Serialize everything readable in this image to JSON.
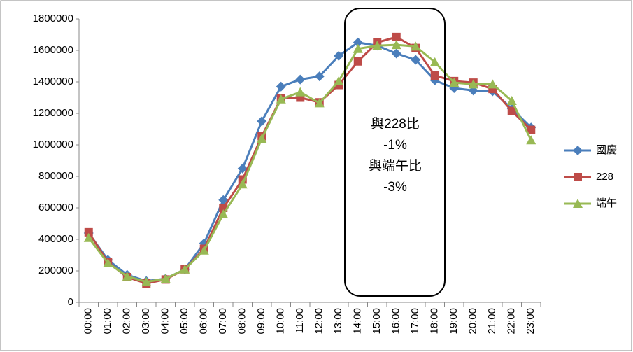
{
  "chart_data": {
    "type": "line",
    "categories": [
      "00:00",
      "01:00",
      "02:00",
      "03:00",
      "04:00",
      "05:00",
      "06:00",
      "07:00",
      "08:00",
      "09:00",
      "10:00",
      "11:00",
      "12:00",
      "13:00",
      "14:00",
      "15:00",
      "16:00",
      "17:00",
      "18:00",
      "19:00",
      "20:00",
      "21:00",
      "22:00",
      "23:00"
    ],
    "series": [
      {
        "name": "國慶",
        "color": "#4a7ebb",
        "marker": "diamond",
        "values": [
          440000,
          270000,
          175000,
          135000,
          150000,
          210000,
          375000,
          650000,
          850000,
          1150000,
          1370000,
          1415000,
          1435000,
          1565000,
          1650000,
          1630000,
          1580000,
          1540000,
          1410000,
          1360000,
          1345000,
          1340000,
          1230000,
          1110000
        ]
      },
      {
        "name": "228",
        "color": "#be4b48",
        "marker": "square",
        "values": [
          445000,
          255000,
          160000,
          120000,
          145000,
          210000,
          340000,
          600000,
          780000,
          1055000,
          1295000,
          1300000,
          1270000,
          1380000,
          1530000,
          1650000,
          1685000,
          1615000,
          1440000,
          1405000,
          1395000,
          1355000,
          1215000,
          1095000
        ]
      },
      {
        "name": "端午",
        "color": "#98b954",
        "marker": "triangle",
        "values": [
          410000,
          250000,
          165000,
          130000,
          150000,
          210000,
          330000,
          560000,
          750000,
          1040000,
          1290000,
          1335000,
          1265000,
          1405000,
          1610000,
          1630000,
          1635000,
          1625000,
          1525000,
          1395000,
          1385000,
          1385000,
          1280000,
          1030000
        ]
      }
    ],
    "ylim": [
      0,
      1800000
    ],
    "yticks": [
      0,
      200000,
      400000,
      600000,
      800000,
      1000000,
      1200000,
      1400000,
      1600000,
      1800000
    ],
    "annotation": [
      "與228比",
      "-1%",
      "與端午比",
      "-3%"
    ],
    "legend": "right"
  }
}
